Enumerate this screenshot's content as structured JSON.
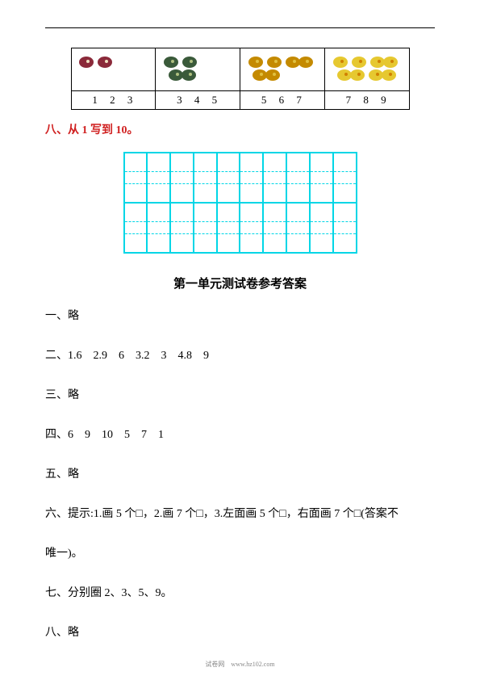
{
  "picture_table": {
    "cells": [
      {
        "name": "mushroom-icon",
        "count": 2,
        "fill": "#8b2a3a",
        "dot": "#f0e0c0"
      },
      {
        "name": "turtle-icon",
        "count": 4,
        "fill": "#3a5a3a",
        "dot": "#b0c080"
      },
      {
        "name": "leaf-icon",
        "count": 6,
        "fill": "#c48a00",
        "dot": "#e0c040"
      },
      {
        "name": "chick-icon",
        "count": 8,
        "fill": "#e6c830",
        "dot": "#d08000"
      }
    ],
    "number_rows": [
      "1  2  3",
      "3  4  5",
      "5  6  7",
      "7  8  9"
    ]
  },
  "question8": "八、从 1 写到 10。",
  "writing_grid": {
    "cols": 10,
    "rows": 2,
    "border_color": "#00d6e6"
  },
  "answers": {
    "title": "第一单元测试卷参考答案",
    "lines": [
      "一、略",
      "二、1.6　2.9　6　3.2　3　4.8　9",
      "三、略",
      "四、6　9　10　5　7　1",
      "五、略",
      "六、提示:1.画 5 个□，2.画 7 个□，3.左面画 5 个□，右面画 7 个□(答案不",
      "唯一)。",
      "七、分别圈 2、3、5、9。",
      "八、略"
    ]
  },
  "footer": "试卷网　www.hz102.com"
}
